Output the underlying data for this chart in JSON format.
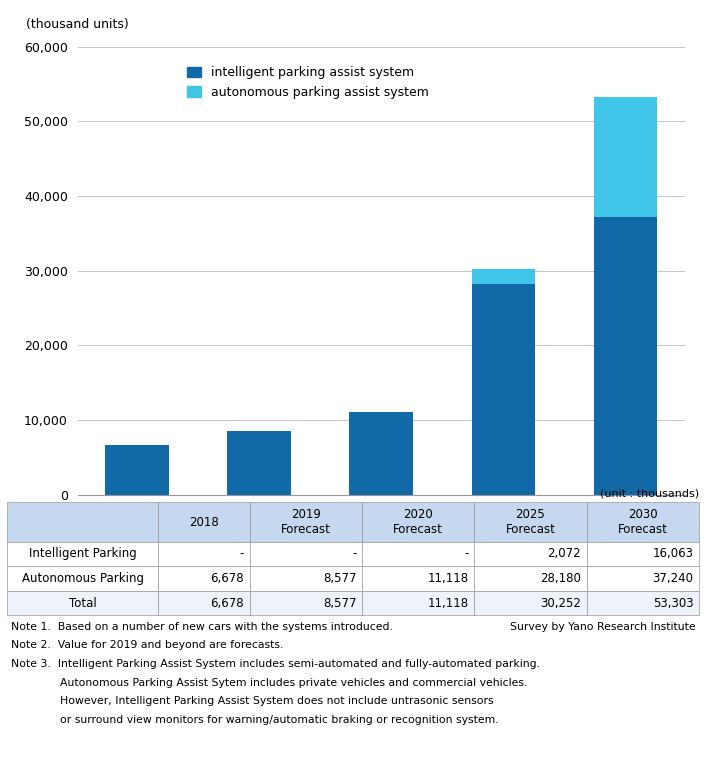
{
  "autonomous_parking": [
    6678,
    8577,
    11118,
    28180,
    37240
  ],
  "intelligent_parking": [
    0,
    0,
    0,
    2072,
    16063
  ],
  "color_autonomous": "#1169A8",
  "color_intelligent": "#40C4E8",
  "ylim": [
    0,
    60000
  ],
  "yticks": [
    0,
    10000,
    20000,
    30000,
    40000,
    50000,
    60000
  ],
  "ylabel": "(thousand units)",
  "legend_label1": "intelligent parking assist system",
  "legend_label2": "autonomous parking assist system",
  "x_top_labels": [
    "2018",
    "2019",
    "2020",
    "2025",
    "2030"
  ],
  "x_bot_labels": [
    "",
    "Forecast",
    "Forecast",
    "Forecast",
    "Forecast"
  ],
  "table_col_headers": [
    "",
    "2018",
    "2019\nForecast",
    "2020\nForecast",
    "2025\nForecast",
    "2030\nForecast"
  ],
  "table_row1_label": "Intelligent Parking",
  "table_row1_values": [
    "-",
    "-",
    "-",
    "2,072",
    "16,063"
  ],
  "table_row2_label": "Autonomous Parking",
  "table_row2_values": [
    "6,678",
    "8,577",
    "11,118",
    "28,180",
    "37,240"
  ],
  "table_row3_label": "Total",
  "table_row3_values": [
    "6,678",
    "8,577",
    "11,118",
    "30,252",
    "53,303"
  ],
  "unit_label": "(unit : thousands)",
  "note1a": "Note 1.  Based on a number of new cars with the systems introduced.",
  "note1b": "Survey by Yano Research Institute",
  "note2": "Note 2.  Value for 2019 and beyond are forecasts.",
  "note3": "Note 3.  Intelligent Parking Assist System includes semi-automated and fully-automated parking.",
  "note3b": "              Autonomous Parking Assist Sytem includes private vehicles and commercial vehicles.",
  "note3c": "              However, Intelligent Parking Assist System does not include untrasonic sensors",
  "note3d": "              or surround view monitors for warning/automatic braking or recognition system.",
  "header_bg": "#C5D8F0",
  "row_bg": "#FFFFFF",
  "total_bg": "#EEF3FA",
  "border_color": "#999999"
}
